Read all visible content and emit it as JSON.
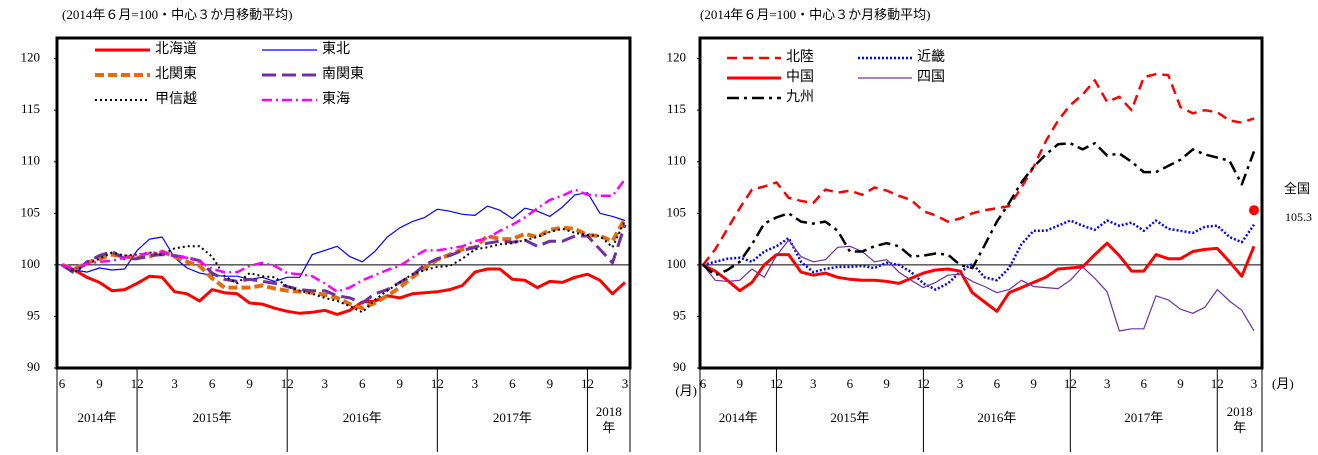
{
  "chart_data": [
    {
      "type": "line",
      "subtitle": "(2014年６月=100・中心３か月移動平均)",
      "categories": [
        "6",
        null,
        null,
        "9",
        null,
        null,
        "12",
        null,
        null,
        "3",
        null,
        null,
        "6",
        null,
        null,
        "9",
        null,
        null,
        "12",
        null,
        null,
        "3",
        null,
        null,
        "6",
        null,
        null,
        "9",
        null,
        null,
        "12",
        null,
        null,
        "3",
        null,
        null,
        "6",
        null,
        null,
        "9",
        null,
        null,
        "12",
        null,
        null,
        "3"
      ],
      "year_labels": [
        "2014年",
        "2015年",
        "2016年",
        "2017年",
        "2018年"
      ],
      "ylim": [
        90,
        122
      ],
      "yticks": [
        90,
        95,
        100,
        105,
        110,
        115,
        120
      ],
      "hline": 100,
      "series": [
        {
          "name": "北海道",
          "color": "#ff0000",
          "width": 3,
          "dash": "none",
          "values": [
            100,
            99.5,
            98.8,
            98.3,
            97.5,
            97.6,
            98.2,
            98.9,
            98.8,
            97.4,
            97.2,
            96.5,
            97.6,
            97.3,
            97.2,
            96.3,
            96.2,
            95.8,
            95.5,
            95.3,
            95.4,
            95.6,
            95.2,
            95.6,
            96.4,
            96.5,
            97,
            96.8,
            97.2,
            97.3,
            97.4,
            97.6,
            98,
            99.3,
            99.6,
            99.6,
            98.6,
            98.5,
            97.8,
            98.4,
            98.3,
            98.8,
            99.1,
            98.5,
            97.2,
            98.3
          ]
        },
        {
          "name": "東北",
          "color": "#0000ff",
          "width": 1.2,
          "dash": "none",
          "values": [
            100,
            99.5,
            99.3,
            99.7,
            99.5,
            99.6,
            101.4,
            102.5,
            102.7,
            100.7,
            99.7,
            99.2,
            99,
            98.9,
            98.9,
            98.6,
            98.8,
            98.4,
            98.8,
            98.8,
            101,
            101.4,
            101.8,
            100.8,
            100.3,
            101.3,
            102.7,
            103.6,
            104.2,
            104.6,
            105.4,
            105.2,
            104.9,
            104.8,
            105.7,
            105.3,
            104.5,
            105.5,
            105.2,
            104.7,
            105.6,
            106.8,
            107,
            105,
            104.7,
            104.3
          ]
        },
        {
          "name": "北関東",
          "color": "#e46c0a",
          "width": 4,
          "dash": "9,4",
          "values": [
            100,
            99.6,
            100.2,
            100.6,
            101,
            100.8,
            100.7,
            100.8,
            101.3,
            100.8,
            100.3,
            99.9,
            98.7,
            97.8,
            97.8,
            97.8,
            98,
            97.7,
            97.5,
            97.4,
            97.3,
            97.1,
            96.8,
            96.2,
            95.8,
            96.3,
            97,
            97.8,
            98.8,
            99.7,
            100.5,
            101,
            101.5,
            101.7,
            102.8,
            102.5,
            102.5,
            103,
            102.7,
            103.4,
            103.6,
            103.5,
            102.9,
            102.8,
            102.3,
            104.5
          ]
        },
        {
          "name": "南関東",
          "color": "#7030a0",
          "width": 3,
          "dash": "14,6",
          "values": [
            100,
            99.2,
            100.3,
            100.9,
            101.3,
            100.6,
            100.6,
            100.9,
            101,
            100.9,
            100.7,
            100.4,
            99.2,
            98.6,
            98.4,
            98.6,
            98.4,
            98.2,
            97.9,
            97.6,
            97.5,
            97.5,
            97,
            96.8,
            96.3,
            97.2,
            97.6,
            98.3,
            99,
            100,
            100.6,
            100.9,
            101.4,
            101.7,
            102.1,
            102.3,
            102.2,
            102.4,
            101.8,
            102.3,
            102.3,
            102.8,
            102.8,
            101.5,
            100.2,
            103.9
          ]
        },
        {
          "name": "甲信越",
          "color": "#000000",
          "width": 2,
          "dash": "2,3",
          "values": [
            100,
            99.3,
            100.1,
            100.6,
            101.2,
            100.9,
            101,
            101.2,
            101,
            101.6,
            101.8,
            101.8,
            100.8,
            98.9,
            98.2,
            99.2,
            98.9,
            98.8,
            97.9,
            97.5,
            97.2,
            96.8,
            96.5,
            96,
            95.4,
            96.6,
            97.5,
            98.3,
            99.1,
            99.5,
            99.8,
            99.9,
            100.6,
            101.5,
            101.7,
            102,
            102.1,
            102.4,
            102.7,
            103.2,
            103.5,
            103.1,
            102.9,
            102.8,
            101.7,
            104.3
          ]
        },
        {
          "name": "東海",
          "color": "#ff00ff",
          "width": 2.5,
          "dash": "10,4,2,4",
          "values": [
            100,
            99.6,
            100.1,
            100.3,
            100.4,
            100.7,
            101,
            101.1,
            101.3,
            100.8,
            100.7,
            100.3,
            99.6,
            99.3,
            99.3,
            99.9,
            100.2,
            99.9,
            99.2,
            99.1,
            98.9,
            98.2,
            97.4,
            97.8,
            98.5,
            99,
            99.5,
            99.9,
            100.7,
            101.4,
            101.4,
            101.6,
            101.8,
            102.3,
            102.6,
            103.3,
            103.9,
            104.6,
            105.5,
            106.3,
            106.7,
            107.3,
            106.8,
            106.7,
            106.7,
            108.3
          ]
        }
      ]
    },
    {
      "type": "line",
      "subtitle": "(2014年６月=100・中心３か月移動平均)",
      "x_unit": "(月)",
      "categories": [
        "6",
        null,
        null,
        "9",
        null,
        null,
        "12",
        null,
        null,
        "3",
        null,
        null,
        "6",
        null,
        null,
        "9",
        null,
        null,
        "12",
        null,
        null,
        "3",
        null,
        null,
        "6",
        null,
        null,
        "9",
        null,
        null,
        "12",
        null,
        null,
        "3",
        null,
        null,
        "6",
        null,
        null,
        "9",
        null,
        null,
        "12",
        null,
        null,
        "3"
      ],
      "year_labels": [
        "2014年",
        "2015年",
        "2016年",
        "2017年",
        "2018年"
      ],
      "ylim": [
        90,
        122
      ],
      "yticks": [
        90,
        95,
        100,
        105,
        110,
        115,
        120
      ],
      "hline": 100,
      "series": [
        {
          "name": "北陸",
          "color": "#ff0000",
          "width": 2.5,
          "dash": "10,6",
          "values": [
            100,
            101.5,
            103.5,
            105.5,
            107.3,
            107.6,
            108,
            106.5,
            106.2,
            106,
            107.3,
            107,
            107.2,
            106.8,
            107.5,
            107.2,
            106.7,
            106.3,
            105.2,
            104.8,
            104.2,
            104.5,
            105,
            105.3,
            105.5,
            105.7,
            107.5,
            109.5,
            112,
            114,
            115.5,
            116.5,
            117.9,
            115.8,
            116.3,
            115,
            118.2,
            118.5,
            118.4,
            115.3,
            114.7,
            115,
            114.8,
            114,
            113.8,
            114.2
          ]
        },
        {
          "name": "近畿",
          "color": "#0000ff",
          "width": 2.5,
          "dash": "2,2",
          "values": [
            100,
            100.3,
            100.6,
            100.7,
            100.3,
            101.3,
            101.8,
            102.6,
            100.3,
            99.3,
            99.6,
            99.8,
            99.8,
            99.9,
            99.7,
            100.2,
            100,
            99.3,
            98.2,
            97.6,
            98.2,
            99.3,
            100.1,
            98.8,
            98.5,
            99.7,
            102,
            103.3,
            103.3,
            103.8,
            104.3,
            103.8,
            103.4,
            104.3,
            103.8,
            104.1,
            103.3,
            104.3,
            103.5,
            103.3,
            103.1,
            103.7,
            103.8,
            102.7,
            102.2,
            103.9
          ]
        },
        {
          "name": "中国",
          "color": "#ff0000",
          "width": 3,
          "dash": "none",
          "values": [
            100,
            99.4,
            98.5,
            97.5,
            98.3,
            100,
            101,
            101,
            99.3,
            99,
            99.2,
            98.8,
            98.6,
            98.5,
            98.5,
            98.4,
            98.2,
            98.7,
            99.2,
            99.5,
            99.6,
            99.4,
            97.3,
            96.4,
            95.5,
            97.3,
            97.8,
            98.3,
            98.8,
            99.6,
            99.7,
            99.8,
            101,
            102.1,
            100.9,
            99.4,
            99.4,
            101,
            100.6,
            100.6,
            101.3,
            101.5,
            101.6,
            100.3,
            98.9,
            101.8
          ]
        },
        {
          "name": "四国",
          "color": "#7030a0",
          "width": 1.2,
          "dash": "none",
          "values": [
            100,
            98.5,
            98.4,
            98.5,
            99.6,
            98.8,
            100.9,
            102.4,
            100.8,
            100.3,
            100.5,
            101.7,
            101.8,
            101.3,
            100.3,
            100.5,
            99.3,
            98.5,
            97.8,
            98.3,
            99,
            99.1,
            98.4,
            97.9,
            97.3,
            97.6,
            98.5,
            97.9,
            97.8,
            97.7,
            98.5,
            99.8,
            98.7,
            97.4,
            93.6,
            93.8,
            93.8,
            97,
            96.6,
            95.7,
            95.3,
            95.9,
            97.6,
            96.5,
            95.6,
            93.6
          ]
        },
        {
          "name": "九州",
          "color": "#000000",
          "width": 2.5,
          "dash": "12,5,3,5",
          "values": [
            100,
            99,
            99.5,
            100.3,
            102,
            104,
            104.6,
            105,
            104.2,
            104,
            104.2,
            103.3,
            101.3,
            101.3,
            101.8,
            102.1,
            101.8,
            100.8,
            100.9,
            101.1,
            101,
            100,
            99.7,
            101.9,
            104.2,
            106,
            108,
            109.5,
            110.7,
            111.7,
            111.8,
            111.2,
            111.8,
            110.6,
            110.8,
            110,
            109,
            109,
            109.6,
            110.2,
            111.2,
            110.7,
            110.4,
            110.1,
            107.8,
            111
          ]
        }
      ],
      "national": {
        "label": "全国",
        "value": 105.3,
        "color": "#ff0000"
      }
    }
  ]
}
